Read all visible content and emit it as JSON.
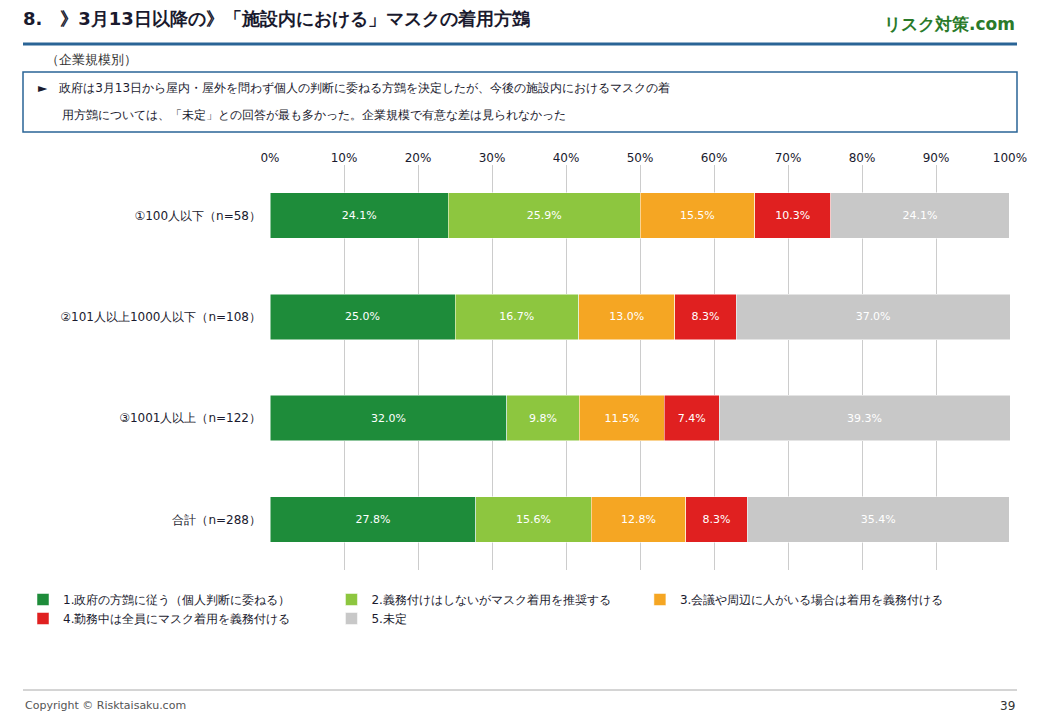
{
  "chart_data": {
    "type": "bar",
    "orientation": "horizontal",
    "stacked": true,
    "title": "8.　》3月13日以降の》「施設内における」マスクの着用方鷑",
    "subtitle": "（企業規模別）",
    "annotations": [
      "リスク対策.com",
      "►　政府は3月13日から屋内・屋外を問わず個人の判断に委ねる方鷑を決定したが、今後の施設内におけるマスクの着",
      "　　用方鷑については、「未定」との回答が最も多かった。企業規模で有意な差は見られなかった",
      "Copyright © Risktaisaku.com",
      "39"
    ],
    "categories": [
      "①100人以下（n=58）",
      "②101人以上1000人以下（n=108）",
      "③1001人以上（n=122）",
      "合計（n=288）"
    ],
    "series": [
      {
        "name": "1.政府の方鷑に従う（個人判断に委ねる）",
        "color": "#1e8c3a",
        "values": [
          24.1,
          25.0,
          32.0,
          27.8
        ],
        "value_labels": [
          "24.1%",
          "25.0%",
          "32.0%",
          "27.8%"
        ]
      },
      {
        "name": "2.義務付けはしないがマスク着用を推奨する",
        "color": "#8dc63f",
        "values": [
          25.9,
          16.7,
          9.8,
          15.6
        ],
        "value_labels": [
          "25.9%",
          "16.7%",
          "9.8%",
          "15.6%"
        ]
      },
      {
        "name": "3.会議や周辺に人がいる場合は着用を義務付ける",
        "color": "#f5a623",
        "values": [
          15.5,
          13.0,
          11.5,
          12.8
        ],
        "value_labels": [
          "15.5%",
          "13.0%",
          "11.5%",
          "12.8%"
        ]
      },
      {
        "name": "4.勤務中は全員にマスク着用を義務付ける",
        "color": "#e02020",
        "values": [
          10.3,
          8.3,
          7.4,
          8.3
        ],
        "value_labels": [
          "10.3%",
          "8.3%",
          "7.4%",
          "8.3%"
        ]
      },
      {
        "name": "5.未定",
        "color": "#c8c8c8",
        "values": [
          24.1,
          37.0,
          39.3,
          35.4
        ],
        "value_labels": [
          "24.1%",
          "37.0%",
          "39.3%",
          "35.4%"
        ]
      }
    ],
    "xlim": [
      0,
      100
    ],
    "xticks": [
      {
        "value": 0,
        "label": "0%"
      },
      {
        "value": 10,
        "label": "10%"
      },
      {
        "value": 20,
        "label": "20%"
      },
      {
        "value": 30,
        "label": "30%"
      },
      {
        "value": 40,
        "label": "40%"
      },
      {
        "value": 50,
        "label": "50%"
      },
      {
        "value": 60,
        "label": "60%"
      },
      {
        "value": 70,
        "label": "70%"
      },
      {
        "value": 80,
        "label": "80%"
      },
      {
        "value": 90,
        "label": "90%"
      },
      {
        "value": 100,
        "label": "100%"
      }
    ],
    "grid": true,
    "legend": "bottom",
    "data_labels": true
  }
}
